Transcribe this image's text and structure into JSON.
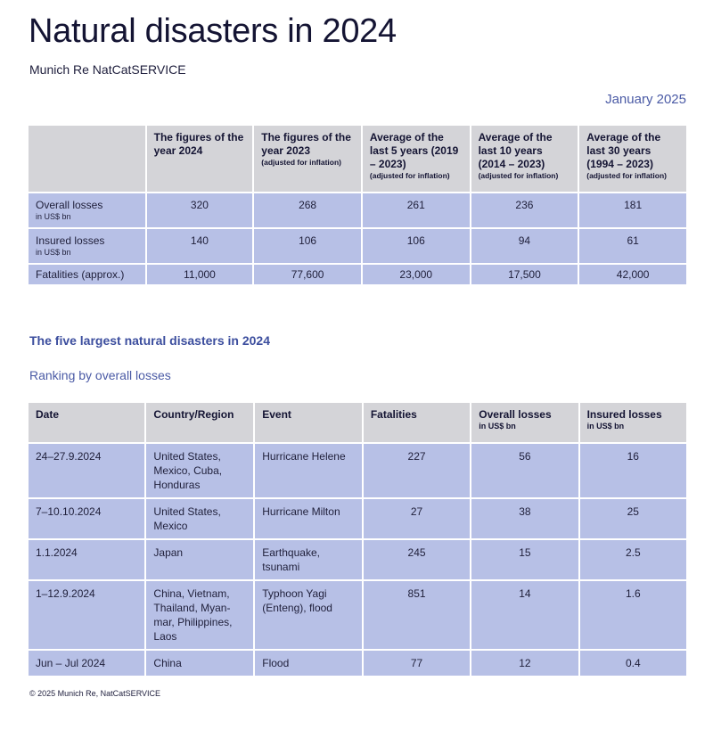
{
  "title": "Natural disasters in 2024",
  "subtitle": "Munich Re NatCatSERVICE",
  "date": "January 2025",
  "summary": {
    "headers": [
      {
        "main": "The figures of the year 2024",
        "note": ""
      },
      {
        "main": "The figures of the year 2023",
        "note": "(adjusted for inflation)"
      },
      {
        "main": "Average of the last 5 years (2019 – 2023)",
        "note": "(adjusted for inflation)"
      },
      {
        "main": "Average of the last 10 years (2014 – 2023)",
        "note": "(adjusted for inflation)"
      },
      {
        "main": "Average of the last 30 years (1994 – 2023)",
        "note": "(adjusted for inflation)"
      }
    ],
    "rows": [
      {
        "label": "Overall losses",
        "unit": "in US$ bn",
        "values": [
          "320",
          "268",
          "261",
          "236",
          "181"
        ]
      },
      {
        "label": "Insured losses",
        "unit": "in US$ bn",
        "values": [
          "140",
          "106",
          "106",
          "94",
          "61"
        ]
      },
      {
        "label": "Fatalities (approx.)",
        "unit": "",
        "values": [
          "11,000",
          "77,600",
          "23,000",
          "17,500",
          "42,000"
        ]
      }
    ]
  },
  "section_title": "The five largest natural disasters in 2024",
  "ranking_label": "Ranking by overall losses",
  "largest": {
    "headers": [
      {
        "main": "Date",
        "unit": ""
      },
      {
        "main": "Country/Region",
        "unit": ""
      },
      {
        "main": "Event",
        "unit": ""
      },
      {
        "main": "Fatalities",
        "unit": ""
      },
      {
        "main": "Overall losses",
        "unit": "in US$ bn"
      },
      {
        "main": "Insured losses",
        "unit": "in US$ bn"
      }
    ],
    "rows": [
      [
        "24–27.9.2024",
        "United States, Mexico, Cuba, Honduras",
        "Hurricane Helene",
        "227",
        "56",
        "16"
      ],
      [
        "7–10.10.2024",
        "United States, Mexico",
        "Hurricane Milton",
        "27",
        "38",
        "25"
      ],
      [
        "1.1.2024",
        "Japan",
        "Earthquake, tsunami",
        "245",
        "15",
        "2.5"
      ],
      [
        "1–12.9.2024",
        "China, Vietnam, Thailand, Myan-mar, Philippines, Laos",
        "Typhoon Yagi (Enteng), flood",
        "851",
        "14",
        "1.6"
      ],
      [
        "Jun – Jul 2024",
        "China",
        "Flood",
        "77",
        "12",
        "0.4"
      ]
    ]
  },
  "footer": "© 2025 Munich Re, NatCatSERVICE"
}
